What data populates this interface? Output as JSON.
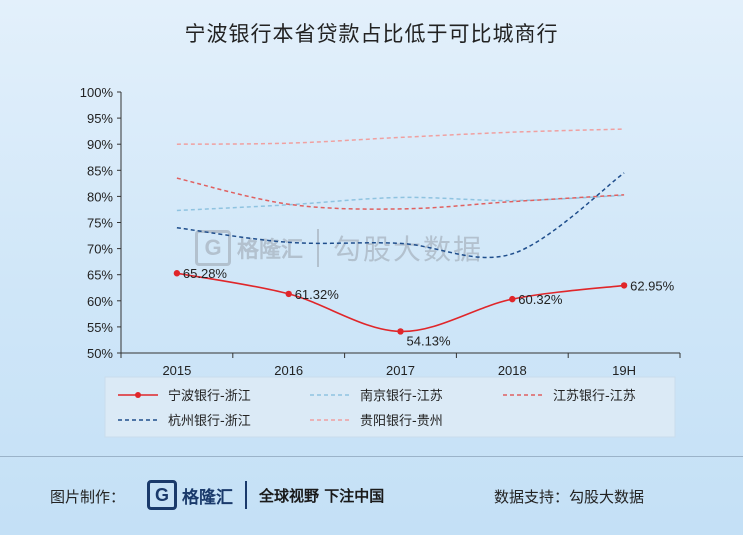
{
  "title": "宁波银行本省贷款占比低于可比城商行",
  "watermark": {
    "logo_letter": "G",
    "logo_name": "格隆汇",
    "data_source": "勾股大数据"
  },
  "footer": {
    "left_label": "图片制作：",
    "logo_letter": "G",
    "logo_name": "格隆汇",
    "slogan": "全球视野 下注中国",
    "right_label": "数据支持：勾股大数据"
  },
  "chart_data": {
    "type": "line",
    "categories": [
      "2015",
      "2016",
      "2017",
      "2018",
      "19H"
    ],
    "ylim": [
      50,
      100
    ],
    "yticks": [
      "50%",
      "55%",
      "60%",
      "65%",
      "70%",
      "75%",
      "80%",
      "85%",
      "90%",
      "95%",
      "100%"
    ],
    "series": [
      {
        "name": "宁波银行-浙江",
        "values": [
          65.28,
          61.32,
          54.13,
          60.32,
          62.95
        ],
        "labels": [
          "65.28%",
          "61.32%",
          "54.13%",
          "60.32%",
          "62.95%"
        ],
        "color": "#e0262a",
        "style": "solid-marker"
      },
      {
        "name": "南京银行-江苏",
        "values": [
          77.3,
          78.4,
          79.8,
          79.2,
          80.2
        ],
        "color": "#8fc3e0",
        "style": "dashed"
      },
      {
        "name": "江苏银行-江苏",
        "values": [
          83.5,
          78.5,
          77.6,
          79.0,
          80.3
        ],
        "color": "#e06060",
        "style": "dashed"
      },
      {
        "name": "杭州银行-浙江",
        "values": [
          74.0,
          71.2,
          71.0,
          69.0,
          84.5
        ],
        "color": "#1f4e8c",
        "style": "dashed"
      },
      {
        "name": "贵阳银行-贵州",
        "values": [
          90.0,
          90.2,
          91.3,
          92.3,
          92.9
        ],
        "color": "#f0a0a0",
        "style": "dashed"
      }
    ],
    "legend_position": "bottom"
  }
}
